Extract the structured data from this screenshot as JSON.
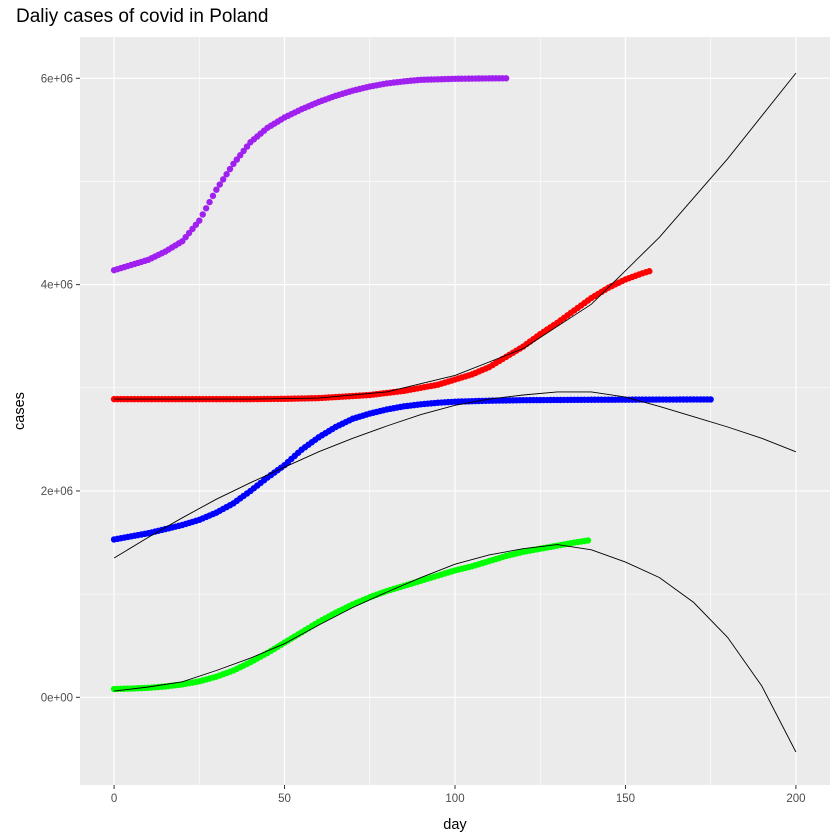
{
  "chart_data": {
    "type": "scatter",
    "title": "Daliy cases of covid in Poland",
    "xlabel": "day",
    "ylabel": "cases",
    "xlim": [
      -10,
      210
    ],
    "ylim": [
      -850000,
      6400000
    ],
    "x_ticks": [
      0,
      50,
      100,
      150,
      200
    ],
    "x_tick_labels": [
      "0",
      "50",
      "100",
      "150",
      "200"
    ],
    "y_ticks": [
      0,
      2000000,
      4000000,
      6000000
    ],
    "y_tick_labels": [
      "0e+00",
      "2e+06",
      "4e+06",
      "6e+06"
    ],
    "grid": true,
    "background": "#ebebeb",
    "series": [
      {
        "color": "#a020f0",
        "x_range": [
          0,
          115
        ],
        "points": [
          [
            0,
            4140000
          ],
          [
            5,
            4190000
          ],
          [
            10,
            4240000
          ],
          [
            15,
            4320000
          ],
          [
            20,
            4420000
          ],
          [
            25,
            4620000
          ],
          [
            30,
            4920000
          ],
          [
            35,
            5170000
          ],
          [
            40,
            5380000
          ],
          [
            45,
            5520000
          ],
          [
            50,
            5620000
          ],
          [
            55,
            5700000
          ],
          [
            60,
            5770000
          ],
          [
            65,
            5830000
          ],
          [
            70,
            5880000
          ],
          [
            75,
            5920000
          ],
          [
            80,
            5950000
          ],
          [
            85,
            5970000
          ],
          [
            90,
            5985000
          ],
          [
            95,
            5990000
          ],
          [
            100,
            5995000
          ],
          [
            105,
            5997000
          ],
          [
            110,
            5999000
          ],
          [
            115,
            6000000
          ]
        ]
      },
      {
        "color": "#ff0000",
        "x_range": [
          0,
          157
        ],
        "points": [
          [
            0,
            2890000
          ],
          [
            20,
            2890000
          ],
          [
            40,
            2890000
          ],
          [
            50,
            2893000
          ],
          [
            60,
            2900000
          ],
          [
            70,
            2920000
          ],
          [
            75,
            2930000
          ],
          [
            80,
            2950000
          ],
          [
            85,
            2970000
          ],
          [
            90,
            3000000
          ],
          [
            95,
            3030000
          ],
          [
            100,
            3080000
          ],
          [
            105,
            3130000
          ],
          [
            110,
            3200000
          ],
          [
            115,
            3300000
          ],
          [
            120,
            3400000
          ],
          [
            125,
            3520000
          ],
          [
            130,
            3630000
          ],
          [
            135,
            3750000
          ],
          [
            140,
            3870000
          ],
          [
            145,
            3970000
          ],
          [
            150,
            4050000
          ],
          [
            155,
            4110000
          ],
          [
            157,
            4130000
          ]
        ]
      },
      {
        "color": "#0000ff",
        "x_range": [
          0,
          175
        ],
        "points": [
          [
            0,
            1530000
          ],
          [
            5,
            1560000
          ],
          [
            10,
            1590000
          ],
          [
            15,
            1630000
          ],
          [
            20,
            1670000
          ],
          [
            25,
            1720000
          ],
          [
            30,
            1790000
          ],
          [
            35,
            1880000
          ],
          [
            40,
            2000000
          ],
          [
            45,
            2130000
          ],
          [
            50,
            2250000
          ],
          [
            55,
            2400000
          ],
          [
            60,
            2520000
          ],
          [
            65,
            2620000
          ],
          [
            70,
            2700000
          ],
          [
            75,
            2750000
          ],
          [
            80,
            2790000
          ],
          [
            85,
            2820000
          ],
          [
            90,
            2840000
          ],
          [
            95,
            2855000
          ],
          [
            100,
            2865000
          ],
          [
            110,
            2875000
          ],
          [
            120,
            2880000
          ],
          [
            130,
            2882000
          ],
          [
            140,
            2884000
          ],
          [
            150,
            2885000
          ],
          [
            160,
            2886000
          ],
          [
            175,
            2887000
          ]
        ]
      },
      {
        "color": "#00ff00",
        "x_range": [
          0,
          139
        ],
        "points": [
          [
            0,
            80000
          ],
          [
            5,
            85000
          ],
          [
            10,
            92000
          ],
          [
            15,
            105000
          ],
          [
            20,
            125000
          ],
          [
            25,
            155000
          ],
          [
            30,
            200000
          ],
          [
            35,
            260000
          ],
          [
            40,
            340000
          ],
          [
            45,
            430000
          ],
          [
            50,
            530000
          ],
          [
            55,
            630000
          ],
          [
            60,
            730000
          ],
          [
            65,
            820000
          ],
          [
            70,
            900000
          ],
          [
            75,
            970000
          ],
          [
            80,
            1030000
          ],
          [
            85,
            1080000
          ],
          [
            90,
            1130000
          ],
          [
            95,
            1180000
          ],
          [
            100,
            1230000
          ],
          [
            105,
            1270000
          ],
          [
            110,
            1320000
          ],
          [
            115,
            1370000
          ],
          [
            120,
            1410000
          ],
          [
            125,
            1440000
          ],
          [
            130,
            1470000
          ],
          [
            135,
            1500000
          ],
          [
            139,
            1520000
          ]
        ]
      }
    ],
    "fit_lines": [
      {
        "color": "#000000",
        "points": [
          [
            0,
            2890000
          ],
          [
            20,
            2890000
          ],
          [
            40,
            2890000
          ],
          [
            60,
            2900000
          ],
          [
            80,
            2960000
          ],
          [
            100,
            3120000
          ],
          [
            120,
            3380000
          ],
          [
            140,
            3810000
          ],
          [
            160,
            4460000
          ],
          [
            180,
            5220000
          ],
          [
            200,
            6050000
          ]
        ]
      },
      {
        "color": "#000000",
        "points": [
          [
            0,
            1350000
          ],
          [
            10,
            1550000
          ],
          [
            20,
            1740000
          ],
          [
            30,
            1920000
          ],
          [
            40,
            2080000
          ],
          [
            50,
            2230000
          ],
          [
            60,
            2380000
          ],
          [
            70,
            2510000
          ],
          [
            80,
            2630000
          ],
          [
            90,
            2740000
          ],
          [
            100,
            2830000
          ],
          [
            110,
            2890000
          ],
          [
            120,
            2930000
          ],
          [
            130,
            2960000
          ],
          [
            140,
            2960000
          ],
          [
            150,
            2910000
          ],
          [
            160,
            2820000
          ],
          [
            170,
            2720000
          ],
          [
            180,
            2620000
          ],
          [
            190,
            2510000
          ],
          [
            200,
            2380000
          ]
        ]
      },
      {
        "color": "#000000",
        "points": [
          [
            0,
            60000
          ],
          [
            10,
            100000
          ],
          [
            20,
            150000
          ],
          [
            30,
            260000
          ],
          [
            40,
            380000
          ],
          [
            50,
            520000
          ],
          [
            60,
            700000
          ],
          [
            70,
            870000
          ],
          [
            80,
            1020000
          ],
          [
            90,
            1160000
          ],
          [
            100,
            1290000
          ],
          [
            110,
            1380000
          ],
          [
            120,
            1440000
          ],
          [
            130,
            1480000
          ],
          [
            140,
            1430000
          ],
          [
            150,
            1310000
          ],
          [
            160,
            1160000
          ],
          [
            170,
            920000
          ],
          [
            180,
            580000
          ],
          [
            190,
            110000
          ],
          [
            200,
            -530000
          ]
        ]
      }
    ]
  }
}
